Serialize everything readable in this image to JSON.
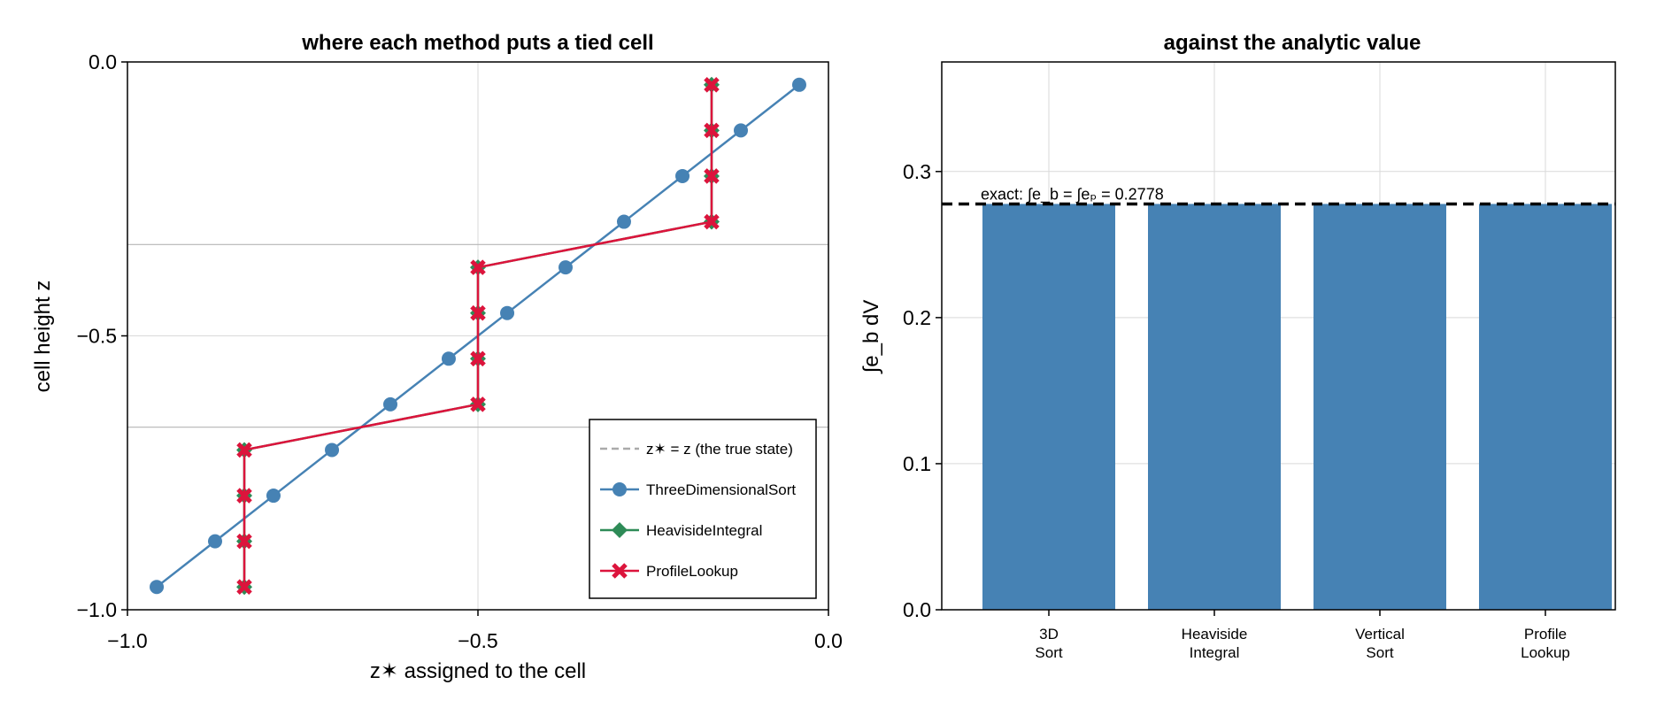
{
  "chart_data": [
    {
      "type": "line",
      "title": "where each method puts a tied cell",
      "xlabel": "z✶ assigned to the cell",
      "ylabel": "cell height z",
      "xlim": [
        -1.0,
        0.0
      ],
      "ylim": [
        -1.0,
        0.0
      ],
      "xticks": [
        -1.0,
        -0.5,
        0.0
      ],
      "yticks": [
        -1.0,
        -0.5,
        0.0
      ],
      "xtick_labels": [
        "−1.0",
        "−0.5",
        "0.0"
      ],
      "ytick_labels": [
        "−1.0",
        "−0.5",
        "0.0"
      ],
      "hlines": [
        -0.3333,
        -0.6667
      ],
      "grid": true,
      "legend_position": "bottom-right",
      "series": [
        {
          "name": "z✶ = z  (the true state)",
          "style": "dashed",
          "color": "#aaaaaa",
          "marker": "none",
          "x": [
            -1.0,
            0.0
          ],
          "y": [
            -1.0,
            0.0
          ]
        },
        {
          "name": "ThreeDimensionalSort",
          "color": "#4682b4",
          "marker": "circle",
          "x": [
            -0.9583,
            -0.875,
            -0.7917,
            -0.7083,
            -0.625,
            -0.5417,
            -0.4583,
            -0.375,
            -0.2917,
            -0.2083,
            -0.125,
            -0.0417
          ],
          "y": [
            -0.9583,
            -0.875,
            -0.7917,
            -0.7083,
            -0.625,
            -0.5417,
            -0.4583,
            -0.375,
            -0.2917,
            -0.2083,
            -0.125,
            -0.0417
          ]
        },
        {
          "name": "HeavisideIntegral",
          "color": "#2e8b57",
          "marker": "diamond",
          "x": [
            -0.8333,
            -0.8333,
            -0.8333,
            -0.8333,
            -0.5,
            -0.5,
            -0.5,
            -0.5,
            -0.1667,
            -0.1667,
            -0.1667,
            -0.1667
          ],
          "y": [
            -0.9583,
            -0.875,
            -0.7917,
            -0.7083,
            -0.625,
            -0.5417,
            -0.4583,
            -0.375,
            -0.2917,
            -0.2083,
            -0.125,
            -0.0417
          ]
        },
        {
          "name": "ProfileLookup",
          "color": "#dc143c",
          "marker": "cross",
          "x": [
            -0.8333,
            -0.8333,
            -0.8333,
            -0.8333,
            -0.5,
            -0.5,
            -0.5,
            -0.5,
            -0.1667,
            -0.1667,
            -0.1667,
            -0.1667
          ],
          "y": [
            -0.9583,
            -0.875,
            -0.7917,
            -0.7083,
            -0.625,
            -0.5417,
            -0.4583,
            -0.375,
            -0.2917,
            -0.2083,
            -0.125,
            -0.0417
          ]
        }
      ]
    },
    {
      "type": "bar",
      "title": "against the analytic value",
      "xlabel": "",
      "ylabel": "∫e_b dV",
      "ylim": [
        0.0,
        0.375
      ],
      "yticks": [
        0.0,
        0.1,
        0.2,
        0.3
      ],
      "ytick_labels": [
        "0.0",
        "0.1",
        "0.2",
        "0.3"
      ],
      "grid": true,
      "color": "#4682b4",
      "categories": [
        [
          "3D",
          "Sort"
        ],
        [
          "Heaviside",
          "Integral"
        ],
        [
          "Vertical",
          "Sort"
        ],
        [
          "Profile",
          "Lookup"
        ]
      ],
      "values": [
        0.2778,
        0.2778,
        0.2778,
        0.2778
      ],
      "reference_line": {
        "value": 0.2778,
        "style": "dashed",
        "color": "#000000",
        "label": "exact: ∫e_b = ∫eₚ = 0.2778"
      }
    }
  ]
}
